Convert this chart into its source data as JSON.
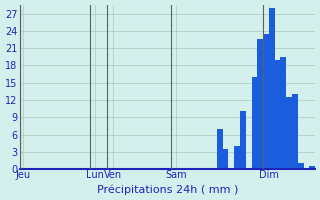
{
  "xlabel": "Précipitations 24h ( mm )",
  "background_color": "#d4f0ec",
  "bar_color": "#1a5edd",
  "ylim": [
    0,
    28.5
  ],
  "yticks": [
    0,
    3,
    6,
    9,
    12,
    15,
    18,
    21,
    24,
    27
  ],
  "grid_color": "#aac8c0",
  "values": [
    0,
    0,
    0,
    0,
    0,
    0,
    0,
    0,
    0,
    0,
    0,
    0,
    0,
    0,
    0,
    0,
    0,
    0,
    0,
    0,
    0,
    0,
    0,
    0,
    0,
    0,
    0,
    0,
    0,
    0,
    0,
    0,
    0,
    0,
    7.0,
    3.5,
    0,
    4.0,
    10.0,
    0,
    16.0,
    22.5,
    23.5,
    28.0,
    19.0,
    19.5,
    12.5,
    13.0,
    1.0,
    0,
    0.5
  ],
  "n_bars": 51,
  "day_labels": [
    "Jeu",
    "Lun",
    "Ven",
    "Sam",
    "Dim"
  ],
  "day_tick_positions": [
    0.5,
    13.0,
    16.0,
    27.0,
    43.0
  ],
  "day_vline_positions": [
    0,
    12,
    15,
    26,
    42
  ],
  "xlabel_fontsize": 8,
  "ytick_fontsize": 7,
  "xtick_fontsize": 7
}
